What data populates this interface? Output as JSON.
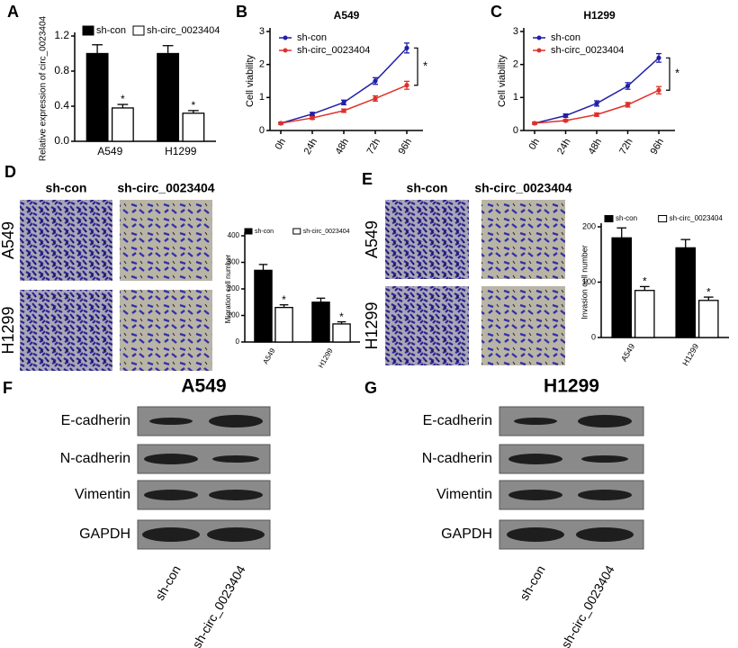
{
  "chart_data": [
    {
      "type": "bar",
      "panel": "A",
      "ylabel": "Relative expression of circ_0023404",
      "categories": [
        "A549",
        "H1299"
      ],
      "series": [
        {
          "name": "sh-con",
          "color": "#000000",
          "values": [
            1.0,
            1.0
          ],
          "errors": [
            0.1,
            0.09
          ]
        },
        {
          "name": "sh-circ_0023404",
          "color": "#ffffff",
          "values": [
            0.38,
            0.32
          ],
          "errors": [
            0.04,
            0.03
          ],
          "significance": [
            "*",
            "*"
          ]
        }
      ],
      "ylim": [
        0,
        1.2
      ],
      "yticks": [
        {
          "value": 0,
          "label": "0.0"
        },
        {
          "value": 0.4,
          "label": "0.4"
        },
        {
          "value": 0.8,
          "label": "0.8"
        },
        {
          "value": 1.2,
          "label": "1.2"
        }
      ]
    },
    {
      "type": "line",
      "panel": "B",
      "title": "A549",
      "ylabel": "Cell viability",
      "annotation": "*",
      "categories": [
        "0h",
        "24h",
        "48h",
        "72h",
        "96h"
      ],
      "series": [
        {
          "name": "sh-con",
          "color": "#1f1fa8",
          "values": [
            0.22,
            0.5,
            0.85,
            1.5,
            2.5
          ],
          "errors": [
            0.03,
            0.05,
            0.07,
            0.1,
            0.15
          ]
        },
        {
          "name": "sh-circ_0023404",
          "color": "#e0302a",
          "values": [
            0.22,
            0.38,
            0.6,
            0.97,
            1.37
          ],
          "errors": [
            0.03,
            0.04,
            0.05,
            0.08,
            0.12
          ]
        }
      ],
      "ylim": [
        0,
        3
      ],
      "yticks": [
        0,
        1,
        2,
        3
      ]
    },
    {
      "type": "line",
      "panel": "C",
      "title": "H1299",
      "ylabel": "Cell viability",
      "annotation": "*",
      "categories": [
        "0h",
        "24h",
        "48h",
        "72h",
        "96h"
      ],
      "series": [
        {
          "name": "sh-con",
          "color": "#1f1fa8",
          "values": [
            0.22,
            0.45,
            0.82,
            1.35,
            2.2
          ],
          "errors": [
            0.03,
            0.05,
            0.08,
            0.1,
            0.13
          ]
        },
        {
          "name": "sh-circ_0023404",
          "color": "#e0302a",
          "values": [
            0.22,
            0.3,
            0.48,
            0.78,
            1.22
          ],
          "errors": [
            0.03,
            0.03,
            0.05,
            0.07,
            0.11
          ]
        }
      ],
      "ylim": [
        0,
        3
      ],
      "yticks": [
        0,
        1,
        2,
        3
      ]
    },
    {
      "type": "bar",
      "panel": "D",
      "ylabel": "Migration cell number",
      "categories": [
        "A549",
        "H1299"
      ],
      "series": [
        {
          "name": "sh-con",
          "color": "#000000",
          "values": [
            270,
            150
          ],
          "errors": [
            22,
            15
          ]
        },
        {
          "name": "sh-circ_0023404",
          "color": "#ffffff",
          "values": [
            130,
            68
          ],
          "errors": [
            10,
            8
          ],
          "significance": [
            "*",
            "*"
          ]
        }
      ],
      "ylim": [
        0,
        400
      ],
      "yticks": [
        0,
        100,
        200,
        300,
        400
      ]
    },
    {
      "type": "bar",
      "panel": "E",
      "ylabel": "Invasion cell number",
      "categories": [
        "A549",
        "H1299"
      ],
      "series": [
        {
          "name": "sh-con",
          "color": "#000000",
          "values": [
            180,
            162
          ],
          "errors": [
            18,
            15
          ]
        },
        {
          "name": "sh-circ_0023404",
          "color": "#ffffff",
          "values": [
            85,
            67
          ],
          "errors": [
            7,
            6
          ],
          "significance": [
            "*",
            "*"
          ]
        }
      ],
      "ylim": [
        0,
        200
      ],
      "yticks": [
        0,
        100,
        200
      ]
    }
  ],
  "micrographs": [
    {
      "columns": [
        "sh-con",
        "sh-circ_0023404"
      ],
      "rows": [
        "A549",
        "H1299"
      ]
    },
    {
      "columns": [
        "sh-con",
        "sh-circ_0023404"
      ],
      "rows": [
        "A549",
        "H1299"
      ]
    }
  ],
  "blots": [
    {
      "panel": "F",
      "title": "A549",
      "proteins": [
        "E-cadherin",
        "N-cadherin",
        "Vimentin",
        "GAPDH"
      ],
      "lanes": [
        "sh-con",
        "sh-circ_0023404"
      ]
    },
    {
      "panel": "G",
      "title": "H1299",
      "proteins": [
        "E-cadherin",
        "N-cadherin",
        "Vimentin",
        "GAPDH"
      ],
      "lanes": [
        "sh-con",
        "sh-circ_0023404"
      ]
    }
  ]
}
